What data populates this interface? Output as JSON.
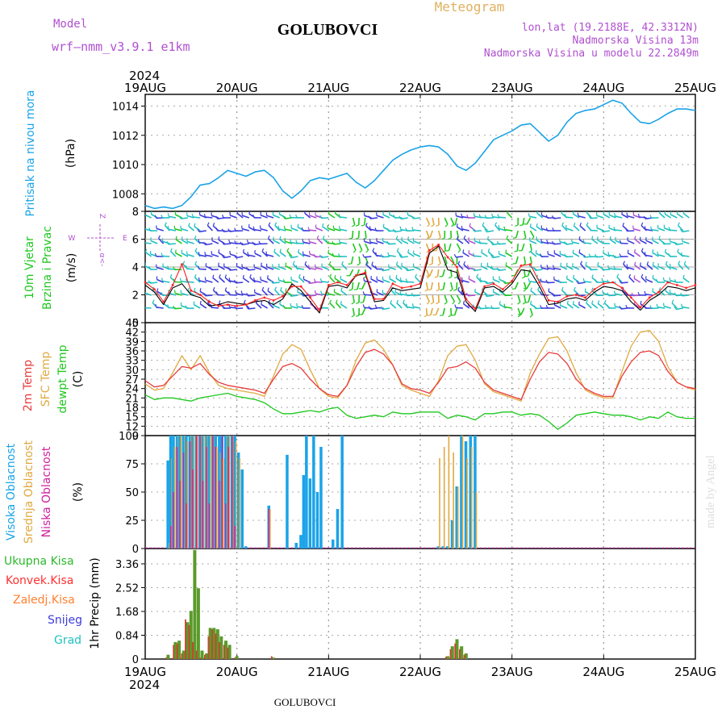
{
  "header": {
    "model_label": "Model",
    "model_name": "wrf–nmm_v3.9.1  e1km",
    "title": "GOLUBOVCI",
    "meteogram": "Meteogram",
    "lonlat": "lon,lat (19.2188E, 42.3312N)",
    "elevation": "Nadmorska Visina 13m",
    "model_elevation": "Nadmorska Visina u modelu 22.2849m",
    "year_top": "2024",
    "year_bottom": "2024",
    "footer": "GOLUBOVCI",
    "watermark": "made by Angel"
  },
  "time_axis": {
    "labels": [
      "19AUG",
      "20AUG",
      "21AUG",
      "22AUG",
      "23AUG",
      "24AUG",
      "25AUG"
    ]
  },
  "colors": {
    "pressure": "#1aa3e8",
    "wind_speed": "#000000",
    "gust": "#ff2020",
    "temp_2m": "#e83c3c",
    "temp_sfc": "#e0a940",
    "dewpoint": "#1ec81e",
    "cloud_high": "#1aa3e8",
    "cloud_mid": "#e0a940",
    "cloud_low": "#d020a0",
    "precip_total": "#2db82d",
    "precip_conv": "#ff3030",
    "precip_frozen": "#ff8030",
    "precip_snow": "#3c3cdc",
    "precip_graupel": "#20c0c0",
    "violet": "#b050d0"
  },
  "chart_data": [
    {
      "type": "line",
      "name": "pressure",
      "ylabel_1": "Pritisak na nivou mora",
      "ylabel_2": "(hPa)",
      "ylim": [
        1006.8,
        1014.8
      ],
      "yticks": [
        "1008",
        "1010",
        "1012",
        "1014"
      ],
      "x_days": [
        0,
        0.1,
        0.2,
        0.3,
        0.4,
        0.5,
        0.6,
        0.7,
        0.8,
        0.9,
        1.0,
        1.1,
        1.2,
        1.3,
        1.4,
        1.5,
        1.6,
        1.7,
        1.8,
        1.9,
        2.0,
        2.1,
        2.2,
        2.3,
        2.4,
        2.5,
        2.6,
        2.7,
        2.8,
        2.9,
        3.0,
        3.1,
        3.2,
        3.3,
        3.4,
        3.5,
        3.6,
        3.7,
        3.8,
        3.9,
        4.0,
        4.1,
        4.2,
        4.3,
        4.4,
        4.5,
        4.6,
        4.7,
        4.8,
        4.9,
        5.0,
        5.1,
        5.2,
        5.3,
        5.4,
        5.5,
        5.6,
        5.7,
        5.8,
        5.9,
        6.0
      ],
      "values": [
        1007.2,
        1007.0,
        1007.1,
        1007.0,
        1007.2,
        1007.8,
        1008.6,
        1008.7,
        1009.1,
        1009.6,
        1009.4,
        1009.2,
        1009.5,
        1009.6,
        1009.1,
        1008.2,
        1007.7,
        1008.2,
        1008.9,
        1009.1,
        1009.0,
        1009.2,
        1009.4,
        1008.8,
        1008.4,
        1008.9,
        1009.6,
        1010.3,
        1010.7,
        1011.0,
        1011.2,
        1011.3,
        1011.2,
        1010.7,
        1009.9,
        1009.6,
        1010.1,
        1010.9,
        1011.7,
        1012.0,
        1012.3,
        1012.7,
        1012.8,
        1012.2,
        1011.6,
        1012.0,
        1012.9,
        1013.5,
        1013.7,
        1013.8,
        1014.1,
        1014.4,
        1014.2,
        1013.5,
        1012.9,
        1012.8,
        1013.1,
        1013.5,
        1013.8,
        1013.8,
        1013.7
      ]
    },
    {
      "type": "line",
      "name": "wind",
      "ylabel_1": "10m Vjetar",
      "ylabel_2": "Brzina i Pravac",
      "ylabel_3": "(m/s)",
      "compass": [
        "Z",
        "E",
        "W",
        "α<-",
        "->"
      ],
      "ylim": [
        0,
        8
      ],
      "yticks": [
        "0",
        "2",
        "4",
        "6",
        "8"
      ],
      "x_days": [
        0,
        0.1,
        0.2,
        0.3,
        0.4,
        0.5,
        0.6,
        0.7,
        0.8,
        0.9,
        1.0,
        1.1,
        1.2,
        1.3,
        1.4,
        1.5,
        1.6,
        1.7,
        1.8,
        1.9,
        2.0,
        2.1,
        2.2,
        2.3,
        2.4,
        2.5,
        2.6,
        2.7,
        2.8,
        2.9,
        3.0,
        3.1,
        3.2,
        3.3,
        3.4,
        3.5,
        3.6,
        3.7,
        3.8,
        3.9,
        4.0,
        4.1,
        4.2,
        4.3,
        4.4,
        4.5,
        4.6,
        4.7,
        4.8,
        4.9,
        5.0,
        5.1,
        5.2,
        5.3,
        5.4,
        5.5,
        5.6,
        5.7,
        5.8,
        5.9,
        6.0
      ],
      "speed": [
        2.7,
        2.2,
        1.3,
        2.5,
        2.8,
        2.0,
        1.8,
        1.2,
        1.3,
        1.5,
        1.4,
        1.3,
        1.5,
        1.6,
        1.3,
        1.7,
        2.8,
        2.3,
        1.5,
        0.7,
        2.6,
        2.7,
        2.5,
        3.4,
        3.5,
        1.5,
        1.6,
        2.5,
        2.3,
        2.4,
        2.5,
        5.0,
        5.5,
        3.8,
        3.6,
        1.5,
        0.8,
        2.5,
        2.6,
        2.2,
        2.8,
        3.8,
        3.7,
        2.6,
        1.3,
        1.4,
        1.7,
        1.8,
        1.6,
        2.2,
        2.6,
        2.5,
        2.3,
        1.5,
        0.9,
        1.6,
        2.0,
        2.6,
        2.5,
        2.3,
        2.5
      ],
      "gust": [
        2.9,
        2.4,
        1.5,
        2.7,
        4.2,
        2.3,
        2.0,
        1.5,
        1.2,
        1.3,
        1.2,
        1.3,
        1.6,
        1.8,
        1.6,
        1.9,
        2.6,
        2.6,
        1.8,
        0.9,
        2.7,
        2.9,
        2.7,
        3.4,
        3.6,
        1.7,
        1.7,
        2.8,
        2.5,
        2.6,
        2.8,
        5.2,
        5.6,
        4.7,
        4.0,
        1.7,
        1.0,
        2.6,
        2.8,
        2.4,
        3.0,
        4.1,
        4.2,
        2.9,
        1.6,
        1.5,
        1.9,
        2.0,
        1.8,
        2.4,
        2.8,
        2.9,
        2.5,
        1.8,
        1.1,
        1.8,
        2.2,
        2.9,
        2.7,
        2.5,
        2.7
      ]
    },
    {
      "type": "line",
      "name": "temperature",
      "ylabel_1": "2m Temp",
      "ylabel_2": "SFC Temp",
      "ylabel_3": "dewpt Temp",
      "ylabel_4": "(C)",
      "ylim": [
        9,
        45
      ],
      "yticks": [
        "9",
        "12",
        "15",
        "18",
        "21",
        "24",
        "27",
        "30",
        "33",
        "36",
        "39",
        "42",
        "45"
      ],
      "x_days": [
        0,
        0.1,
        0.2,
        0.3,
        0.4,
        0.5,
        0.6,
        0.7,
        0.8,
        0.9,
        1.0,
        1.1,
        1.2,
        1.3,
        1.4,
        1.5,
        1.6,
        1.7,
        1.8,
        1.9,
        2.0,
        2.1,
        2.2,
        2.3,
        2.4,
        2.5,
        2.6,
        2.7,
        2.8,
        2.9,
        3.0,
        3.1,
        3.2,
        3.3,
        3.4,
        3.5,
        3.6,
        3.7,
        3.8,
        3.9,
        4.0,
        4.1,
        4.2,
        4.3,
        4.4,
        4.5,
        4.6,
        4.7,
        4.8,
        4.9,
        5.0,
        5.1,
        5.2,
        5.3,
        5.4,
        5.5,
        5.6,
        5.7,
        5.8,
        5.9,
        6.0
      ],
      "temp_2m": [
        26.5,
        24.5,
        25.0,
        28.0,
        31.0,
        30.5,
        32.0,
        28.5,
        26.0,
        25.0,
        24.5,
        24.0,
        23.5,
        22.5,
        27.0,
        31.0,
        32.0,
        30.5,
        27.0,
        24.0,
        22.0,
        21.5,
        25.0,
        31.0,
        35.5,
        36.5,
        35.0,
        31.5,
        25.5,
        24.0,
        23.5,
        22.5,
        26.0,
        30.5,
        31.0,
        32.5,
        30.5,
        26.0,
        23.5,
        22.5,
        21.5,
        20.5,
        27.0,
        32.5,
        35.5,
        35.0,
        32.0,
        27.0,
        24.0,
        22.5,
        21.5,
        21.5,
        28.0,
        32.5,
        35.5,
        36.0,
        34.5,
        29.5,
        26.0,
        24.5,
        24.0
      ],
      "temp_sfc": [
        25.5,
        23.5,
        24.0,
        29.0,
        34.5,
        30.0,
        34.5,
        29.0,
        25.0,
        24.0,
        23.5,
        23.0,
        22.5,
        21.5,
        28.0,
        35.0,
        38.0,
        36.5,
        30.0,
        24.0,
        21.5,
        21.0,
        25.0,
        33.0,
        38.5,
        39.5,
        36.5,
        31.5,
        25.0,
        23.5,
        22.5,
        21.5,
        26.5,
        34.5,
        37.5,
        38.0,
        33.0,
        25.5,
        23.0,
        22.0,
        21.0,
        20.0,
        29.0,
        35.0,
        40.0,
        40.5,
        36.0,
        29.0,
        23.5,
        22.0,
        21.0,
        21.0,
        29.5,
        37.5,
        42.0,
        42.5,
        39.0,
        31.0,
        26.0,
        24.5,
        23.5
      ],
      "dewpoint": [
        22.0,
        20.5,
        21.0,
        21.0,
        20.5,
        20.0,
        21.0,
        21.5,
        22.0,
        22.5,
        21.5,
        21.0,
        20.5,
        19.5,
        17.5,
        16.0,
        16.0,
        16.5,
        17.0,
        16.5,
        17.5,
        18.0,
        15.5,
        14.5,
        15.0,
        15.5,
        15.0,
        16.5,
        16.0,
        16.0,
        16.5,
        16.5,
        16.5,
        14.5,
        15.5,
        15.0,
        14.0,
        16.0,
        16.0,
        16.5,
        16.5,
        15.5,
        16.0,
        15.5,
        13.5,
        11.0,
        13.0,
        15.5,
        16.0,
        16.5,
        16.0,
        15.5,
        15.5,
        15.0,
        14.0,
        15.0,
        14.5,
        16.5,
        15.0,
        14.5,
        14.5
      ]
    },
    {
      "type": "bar",
      "name": "clouds",
      "ylabel_1": "Visoka Oblacnost",
      "ylabel_2": "Srednja Oblacnost",
      "ylabel_3": "Niska Oblacnost",
      "ylabel_4": "(%)",
      "ylim": [
        0,
        100
      ],
      "yticks": [
        "0",
        "25",
        "50",
        "75",
        "100"
      ],
      "x_days": [
        0.25,
        0.28,
        0.31,
        0.35,
        0.38,
        0.42,
        0.45,
        0.49,
        0.52,
        0.56,
        0.6,
        0.63,
        0.67,
        0.7,
        0.74,
        0.77,
        0.81,
        0.84,
        0.88,
        0.91,
        0.95,
        0.98,
        1.02,
        1.06,
        1.1,
        1.35,
        1.55,
        1.65,
        1.7,
        1.73,
        1.76,
        1.8,
        1.84,
        1.88,
        1.92,
        2.05,
        2.1,
        2.15,
        3.2,
        3.25,
        3.3,
        3.35,
        3.4,
        3.45,
        3.5,
        3.55,
        3.6
      ],
      "high": [
        78,
        100,
        100,
        100,
        100,
        100,
        100,
        100,
        100,
        100,
        100,
        100,
        100,
        100,
        100,
        100,
        100,
        100,
        100,
        100,
        100,
        100,
        85,
        70,
        2,
        38,
        83,
        5,
        12,
        65,
        100,
        62,
        100,
        50,
        90,
        8,
        35,
        100,
        2,
        2,
        2,
        25,
        55,
        100,
        95,
        100,
        100
      ],
      "mid": [
        5,
        80,
        90,
        100,
        100,
        100,
        95,
        100,
        100,
        100,
        100,
        100,
        100,
        100,
        100,
        90,
        85,
        80,
        100,
        100,
        100,
        95,
        80,
        0,
        0,
        35,
        0,
        0,
        0,
        0,
        0,
        0,
        0,
        0,
        0,
        0,
        0,
        0,
        80,
        90,
        100,
        85,
        55,
        100,
        80,
        90,
        50
      ],
      "low": [
        0,
        20,
        50,
        90,
        60,
        85,
        40,
        95,
        70,
        100,
        100,
        60,
        90,
        40,
        100,
        90,
        60,
        100,
        40,
        90,
        100,
        20,
        0,
        0,
        0,
        35,
        0,
        0,
        0,
        0,
        0,
        0,
        0,
        0,
        0,
        0,
        0,
        0,
        0,
        0,
        0,
        0,
        0,
        0,
        0,
        0,
        0
      ]
    },
    {
      "type": "bar",
      "name": "precipitation",
      "labels": [
        "Ukupna Kisa",
        "Konvek.Kisa",
        "Zaledj.Kisa",
        "Snijeg",
        "Grad"
      ],
      "ylabel": "1hr Precip (mm)",
      "ylim": [
        0,
        3.9
      ],
      "yticks": [
        "0",
        "0.84",
        "1.68",
        "2.52",
        "3.36"
      ],
      "x_days": [
        0.25,
        0.33,
        0.37,
        0.42,
        0.46,
        0.5,
        0.54,
        0.58,
        0.62,
        0.67,
        0.71,
        0.75,
        0.79,
        0.83,
        0.88,
        0.92,
        1.0,
        1.4,
        3.3,
        3.35,
        3.4,
        3.45,
        3.5
      ],
      "total": [
        0.15,
        0.6,
        0.65,
        0.3,
        1.3,
        1.7,
        3.85,
        2.5,
        0.3,
        0.2,
        1.1,
        1.1,
        1.05,
        0.8,
        0.65,
        0.5,
        0.1,
        0.05,
        0.1,
        0.45,
        0.7,
        0.45,
        0.2
      ],
      "conv": [
        0.05,
        0.5,
        0.55,
        0.2,
        1.4,
        1.2,
        0.6,
        0.3,
        0.05,
        0.15,
        0.8,
        1.05,
        0.9,
        0.6,
        0.5,
        0.4,
        0.05,
        0.1,
        0.08,
        0.35,
        0.55,
        0.35,
        0.15
      ]
    }
  ]
}
